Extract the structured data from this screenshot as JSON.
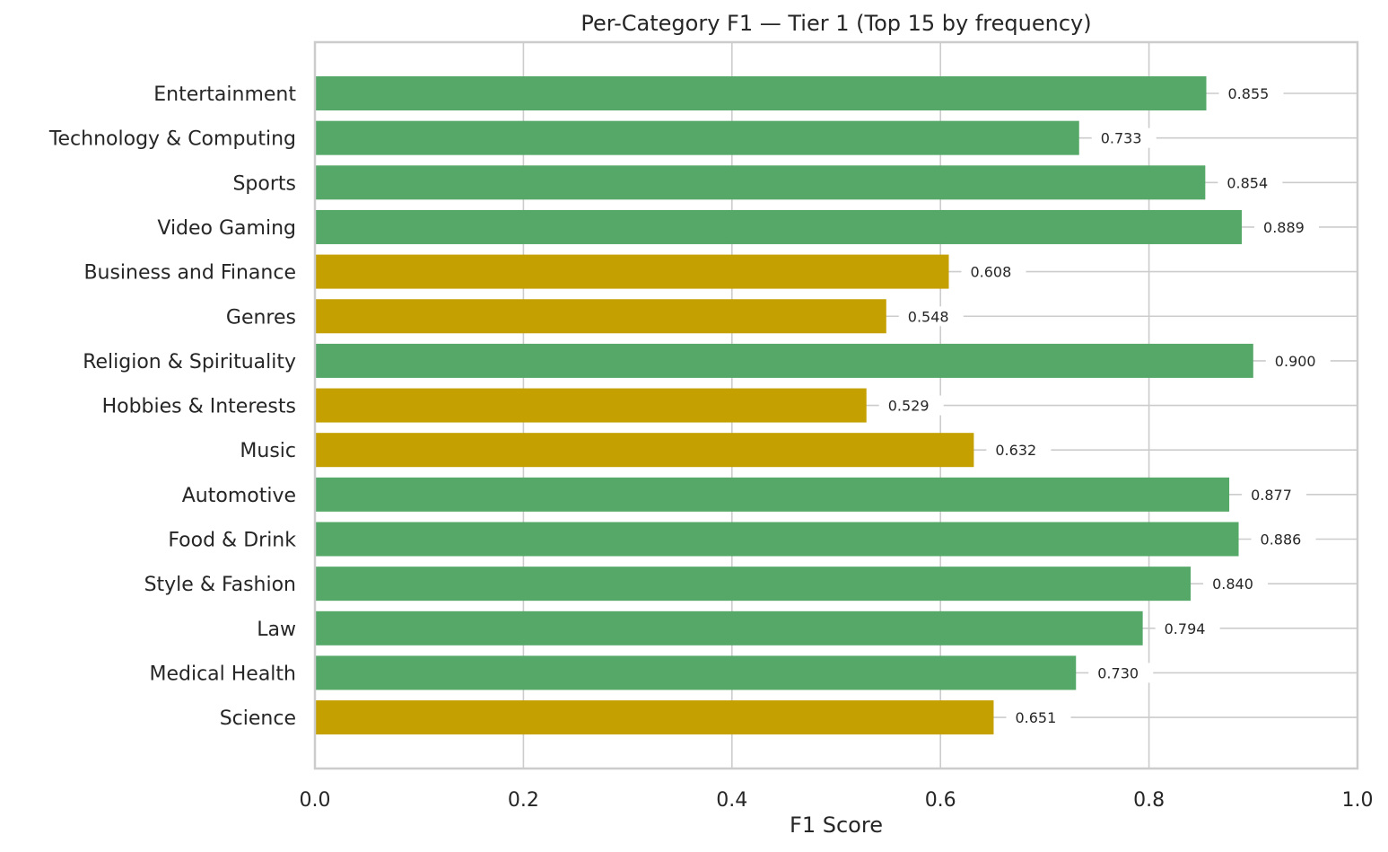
{
  "chart_data": {
    "type": "bar",
    "orientation": "horizontal",
    "title": "Per-Category F1 — Tier 1 (Top 15 by frequency)",
    "xlabel": "F1 Score",
    "ylabel": "",
    "xlim": [
      0.0,
      1.0
    ],
    "x_ticks": [
      "0.0",
      "0.2",
      "0.4",
      "0.6",
      "0.8",
      "1.0"
    ],
    "grid": true,
    "categories": [
      "Entertainment",
      "Technology & Computing",
      "Sports",
      "Video Gaming",
      "Business and Finance",
      "Genres",
      "Religion & Spirituality",
      "Hobbies & Interests",
      "Music",
      "Automotive",
      "Food & Drink",
      "Style & Fashion",
      "Law",
      "Medical Health",
      "Science"
    ],
    "values": [
      0.855,
      0.733,
      0.854,
      0.889,
      0.608,
      0.548,
      0.9,
      0.529,
      0.632,
      0.877,
      0.886,
      0.84,
      0.794,
      0.73,
      0.651
    ],
    "value_labels": [
      "0.855",
      "0.733",
      "0.854",
      "0.889",
      "0.608",
      "0.548",
      "0.900",
      "0.529",
      "0.632",
      "0.877",
      "0.886",
      "0.840",
      "0.794",
      "0.730",
      "0.651"
    ],
    "bar_colors": [
      "#55a868",
      "#55a868",
      "#55a868",
      "#55a868",
      "#c4a000",
      "#c4a000",
      "#55a868",
      "#c4a000",
      "#c4a000",
      "#55a868",
      "#55a868",
      "#55a868",
      "#55a868",
      "#55a868",
      "#c4a000"
    ]
  },
  "colors": {
    "grid": "#cccccc",
    "axes_edge": "#cccccc",
    "text": "#262626"
  }
}
